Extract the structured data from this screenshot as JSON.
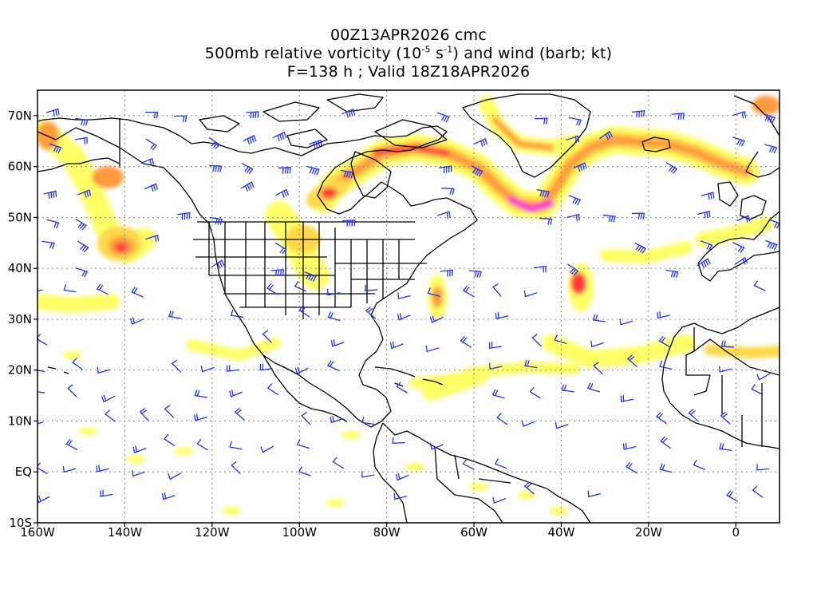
{
  "title": {
    "line1": "00Z13APR2026 cmc",
    "line2_pre": "500mb relative vorticity (10",
    "line2_exp1": "-5",
    "line2_mid": " s",
    "line2_exp2": "-1",
    "line2_post": ") and wind (barb; kt)",
    "line3": "F=138 h ; Valid 18Z18APR2026"
  },
  "axes": {
    "lat_labels": [
      "70N",
      "60N",
      "50N",
      "40N",
      "30N",
      "20N",
      "10N",
      "EQ",
      "10S"
    ],
    "lon_labels": [
      "160W",
      "140W",
      "120W",
      "100W",
      "80W",
      "60W",
      "40W",
      "20W",
      "0"
    ]
  },
  "colors": {
    "vort_low": "#ffff66",
    "vort_mid": "#ffd84a",
    "vort_orange": "#ff9a3c",
    "vort_red": "#ff3b3b",
    "vort_max": "#ff33cc",
    "barb": "#2233ee",
    "coast": "#000000",
    "grid": "#888888"
  },
  "icons": {
    "wind_barb": "wind-barb-icon"
  }
}
